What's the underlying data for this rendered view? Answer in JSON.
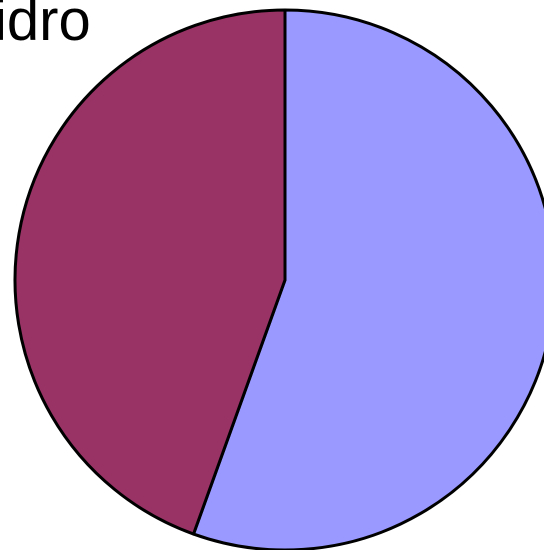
{
  "chart_data": {
    "type": "pie",
    "title": "idro",
    "slices": [
      {
        "value": 55.5,
        "color": "#9999ff"
      },
      {
        "value": 44.5,
        "color": "#993366"
      }
    ],
    "start": "12 o'clock",
    "direction": "clockwise",
    "outline_color": "#000000",
    "legend": "none"
  }
}
